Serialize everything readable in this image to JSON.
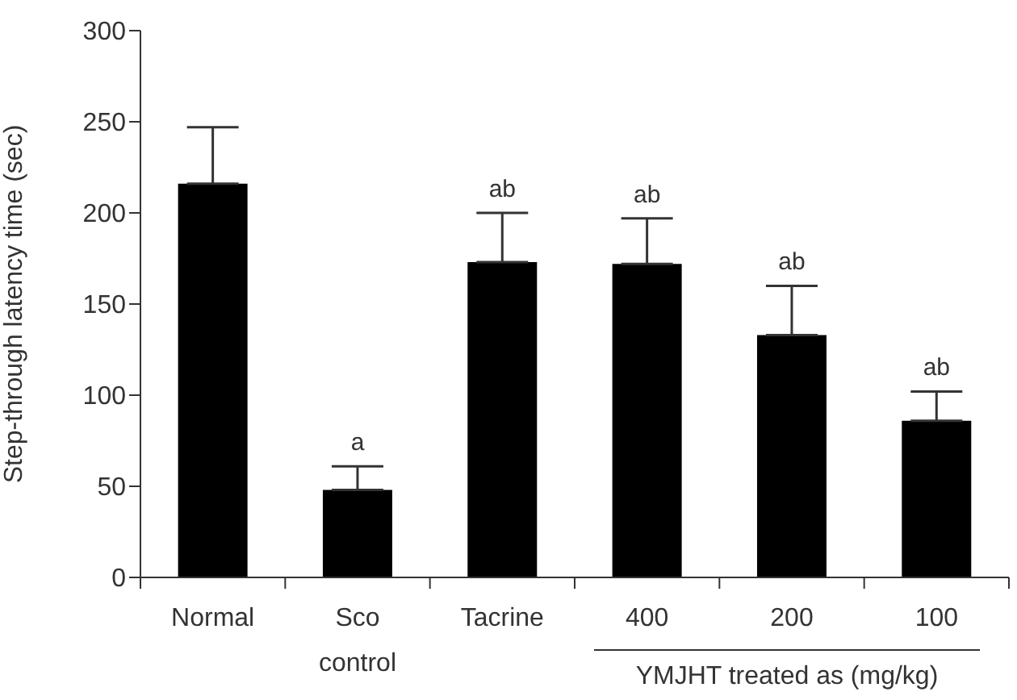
{
  "chart_data": {
    "type": "bar",
    "categories": [
      "Normal",
      "Sco\ncontrol",
      "Tacrine",
      "400",
      "200",
      "100"
    ],
    "values": [
      216,
      48,
      173,
      172,
      133,
      86
    ],
    "errors": [
      [
        216,
        247
      ],
      [
        48,
        61
      ],
      [
        173,
        200
      ],
      [
        172,
        197
      ],
      [
        133,
        160
      ],
      [
        86,
        102
      ]
    ],
    "color": "#000000",
    "ylabel": "Step-through latency time (sec)",
    "xlabel": "YMJHT treated as (mg/kg)",
    "ylim": [
      0,
      300
    ],
    "yticks": [
      0,
      50,
      100,
      150,
      200,
      250,
      300
    ],
    "grid": false,
    "legend": false,
    "annotations": [
      {
        "text": "a",
        "x": "Sco\ncontrol",
        "y": 61
      },
      {
        "text": "ab",
        "x": "Tacrine",
        "y": 200
      },
      {
        "text": "ab",
        "x": "400",
        "y": 197
      },
      {
        "text": "ab",
        "x": "200",
        "y": 160
      },
      {
        "text": "ab",
        "x": "100",
        "y": 102
      }
    ]
  }
}
